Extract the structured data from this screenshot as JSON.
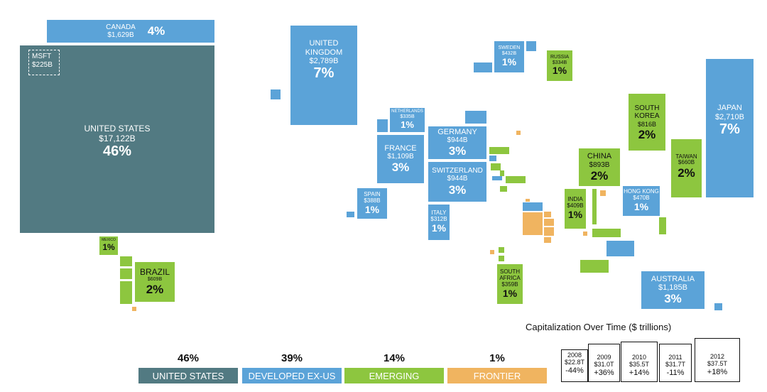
{
  "chart_data": {
    "type": "treemap",
    "title": "",
    "colors": {
      "united_states": "#527a82",
      "developed_ex_us": "#5ba3d8",
      "emerging": "#8dc63f",
      "frontier": "#f0b460"
    },
    "countries": [
      {
        "name": "CANADA",
        "value": "$1,629B",
        "pct": "4%",
        "group": "developed_ex_us"
      },
      {
        "name": "UNITED STATES",
        "value": "$17,122B",
        "pct": "46%",
        "group": "united_states",
        "callout": {
          "name": "MSFT",
          "value": "$225B"
        }
      },
      {
        "name": "UNITED KINGDOM",
        "value": "$2,789B",
        "pct": "7%",
        "group": "developed_ex_us"
      },
      {
        "name": "SWEDEN",
        "value": "$432B",
        "pct": "1%",
        "group": "developed_ex_us"
      },
      {
        "name": "RUSSIA",
        "value": "$334B",
        "pct": "1%",
        "group": "emerging"
      },
      {
        "name": "JAPAN",
        "value": "$2,710B",
        "pct": "7%",
        "group": "developed_ex_us"
      },
      {
        "name": "NETHERLANDS",
        "value": "$335B",
        "pct": "1%",
        "group": "developed_ex_us"
      },
      {
        "name": "GERMANY",
        "value": "$944B",
        "pct": "3%",
        "group": "developed_ex_us"
      },
      {
        "name": "FRANCE",
        "value": "$1,109B",
        "pct": "3%",
        "group": "developed_ex_us"
      },
      {
        "name": "SWITZERLAND",
        "value": "$944B",
        "pct": "3%",
        "group": "developed_ex_us"
      },
      {
        "name": "SOUTH KOREA",
        "value": "$816B",
        "pct": "2%",
        "group": "emerging"
      },
      {
        "name": "CHINA",
        "value": "$893B",
        "pct": "2%",
        "group": "emerging"
      },
      {
        "name": "TAIWAN",
        "value": "$660B",
        "pct": "2%",
        "group": "emerging"
      },
      {
        "name": "SPAIN",
        "value": "$388B",
        "pct": "1%",
        "group": "developed_ex_us"
      },
      {
        "name": "ITALY",
        "value": "$312B",
        "pct": "1%",
        "group": "developed_ex_us"
      },
      {
        "name": "INDIA",
        "value": "$409B",
        "pct": "1%",
        "group": "emerging"
      },
      {
        "name": "HONG KONG",
        "value": "$470B",
        "pct": "1%",
        "group": "developed_ex_us"
      },
      {
        "name": "MEXICO",
        "value": "",
        "pct": "1%",
        "group": "emerging"
      },
      {
        "name": "BRAZIL",
        "value": "$609B",
        "pct": "2%",
        "group": "emerging"
      },
      {
        "name": "SOUTH AFRICA",
        "value": "$359B",
        "pct": "1%",
        "group": "emerging"
      },
      {
        "name": "AUSTRALIA",
        "value": "$1,185B",
        "pct": "3%",
        "group": "developed_ex_us"
      }
    ],
    "legend": [
      {
        "label": "UNITED STATES",
        "pct": "46%",
        "group": "united_states"
      },
      {
        "label": "DEVELOPED EX-US",
        "pct": "39%",
        "group": "developed_ex_us"
      },
      {
        "label": "EMERGING",
        "pct": "14%",
        "group": "emerging"
      },
      {
        "label": "FRONTIER",
        "pct": "1%",
        "group": "frontier"
      }
    ],
    "timeline": {
      "title": "Capitalization Over Time ($ trillions)",
      "years": [
        {
          "year": "2008",
          "total": "$22.8T",
          "change": "-44%"
        },
        {
          "year": "2009",
          "total": "$31.0T",
          "change": "+36%"
        },
        {
          "year": "2010",
          "total": "$35.5T",
          "change": "+14%"
        },
        {
          "year": "2011",
          "total": "$31.7T",
          "change": "-11%"
        },
        {
          "year": "2012",
          "total": "$37.5T",
          "change": "+18%"
        }
      ]
    }
  }
}
